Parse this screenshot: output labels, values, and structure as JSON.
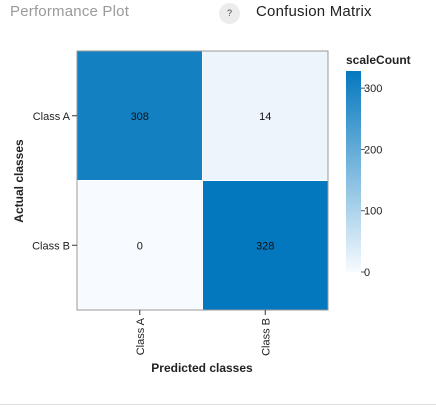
{
  "tabs": {
    "performance_plot": "Performance Plot",
    "help": "?",
    "confusion_matrix": "Confusion Matrix"
  },
  "colors": {
    "cell_low": "#f7fbff",
    "cell_high": "#0478be",
    "axis": "#333333"
  },
  "chart_data": {
    "type": "heatmap",
    "x_categories": [
      "Class A",
      "Class B"
    ],
    "y_categories": [
      "Class A",
      "Class B"
    ],
    "values": [
      [
        308,
        14
      ],
      [
        0,
        328
      ]
    ],
    "xlabel": "Predicted classes",
    "ylabel": "Actual classes",
    "legend_title": "scaleCount",
    "legend_ticks": [
      300,
      200,
      100,
      0
    ],
    "color_range": [
      0,
      328
    ]
  }
}
